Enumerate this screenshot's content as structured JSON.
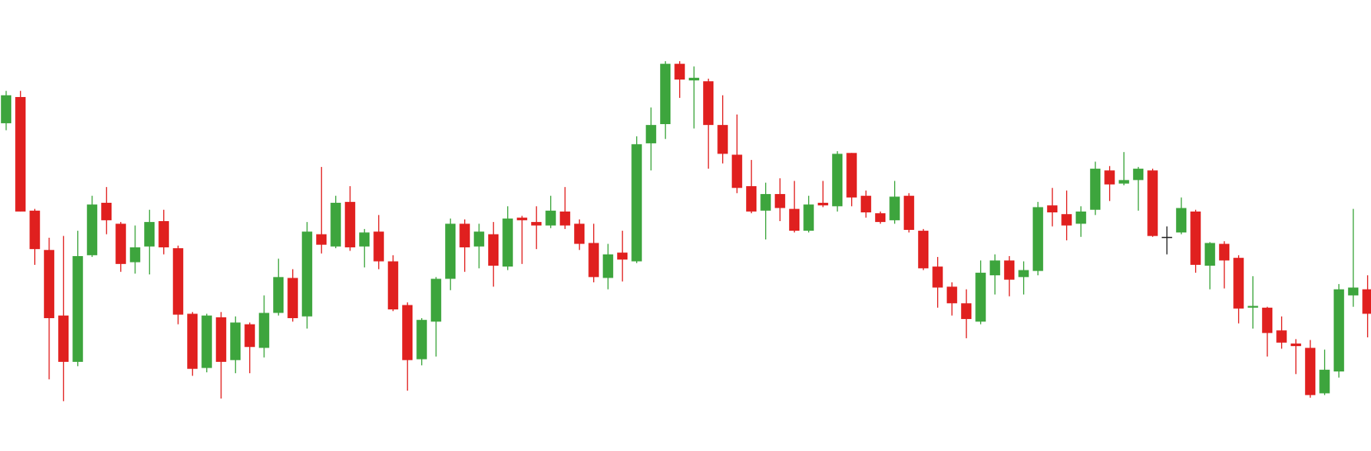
{
  "chart_data": {
    "type": "candlestick",
    "ylim": [
      0,
      516
    ],
    "up_color": "#3da53d",
    "down_color": "#e0201f",
    "flat_color": "#222222",
    "open": [
      375,
      405,
      275,
      230,
      155,
      102,
      224,
      284,
      260,
      216,
      234,
      263,
      232,
      157,
      95,
      153,
      104,
      145,
      118,
      158,
      198,
      154,
      248,
      234,
      285,
      234,
      251,
      217,
      167,
      105,
      148,
      197,
      260,
      234,
      248,
      211,
      267,
      262,
      258,
      274,
      260,
      238,
      198,
      227,
      217,
      352,
      374,
      443,
      424,
      423,
      373,
      339,
      303,
      275,
      294,
      277,
      252,
      284,
      280,
      341,
      292,
      272,
      264,
      292,
      252,
      211,
      188,
      169,
      148,
      201,
      218,
      199,
      206,
      281,
      271,
      260,
      276,
      321,
      306,
      310,
      321,
      245,
      250,
      274,
      212,
      237,
      221,
      164,
      164,
      138,
      123,
      118,
      66,
      91,
      178,
      185
    ],
    "high": [
      412,
      412,
      277,
      244,
      246,
      252,
      292,
      302,
      262,
      258,
      276,
      276,
      235,
      159,
      157,
      159,
      154,
      147,
      178,
      220,
      208,
      262,
      325,
      292,
      303,
      254,
      270,
      224,
      170,
      152,
      199,
      266,
      265,
      260,
      262,
      280,
      269,
      280,
      292,
      302,
      265,
      260,
      237,
      252,
      360,
      393,
      446,
      446,
      440,
      426,
      407,
      385,
      333,
      307,
      312,
      309,
      292,
      309,
      343,
      341,
      298,
      274,
      309,
      295,
      254,
      222,
      193,
      185,
      218,
      225,
      223,
      217,
      285,
      301,
      298,
      280,
      331,
      326,
      342,
      325,
      323,
      257,
      290,
      276,
      239,
      240,
      224,
      200,
      165,
      154,
      128,
      127,
      116,
      191,
      277,
      201
    ],
    "low": [
      367,
      274,
      213,
      82,
      57,
      97,
      222,
      248,
      205,
      203,
      202,
      225,
      145,
      86,
      90,
      60,
      89,
      89,
      107,
      155,
      148,
      140,
      226,
      232,
      229,
      210,
      208,
      160,
      69,
      98,
      108,
      184,
      205,
      209,
      188,
      207,
      214,
      231,
      255,
      254,
      230,
      193,
      185,
      194,
      215,
      321,
      357,
      404,
      369,
      323,
      329,
      295,
      272,
      242,
      263,
      250,
      250,
      279,
      274,
      280,
      267,
      260,
      260,
      250,
      207,
      164,
      155,
      129,
      145,
      179,
      177,
      179,
      201,
      257,
      241,
      245,
      270,
      286,
      304,
      275,
      245,
      225,
      248,
      204,
      185,
      186,
      146,
      140,
      108,
      117,
      88,
      61,
      64,
      84,
      165,
      130
    ],
    "close": [
      407,
      274,
      231,
      152,
      102,
      223,
      282,
      264,
      214,
      233,
      262,
      233,
      156,
      94,
      155,
      102,
      147,
      119,
      158,
      199,
      152,
      251,
      236,
      284,
      233,
      250,
      217,
      162,
      104,
      150,
      197,
      260,
      233,
      251,
      212,
      266,
      264,
      258,
      275,
      258,
      237,
      199,
      225,
      219,
      351,
      373,
      443,
      425,
      427,
      373,
      340,
      301,
      274,
      294,
      278,
      252,
      282,
      281,
      340,
      290,
      273,
      262,
      291,
      253,
      209,
      187,
      169,
      151,
      204,
      218,
      196,
      207,
      279,
      273,
      258,
      274,
      323,
      305,
      310,
      323,
      246,
      245,
      278,
      213,
      238,
      218,
      163,
      166,
      135,
      124,
      120,
      64,
      93,
      185,
      187,
      157
    ]
  }
}
